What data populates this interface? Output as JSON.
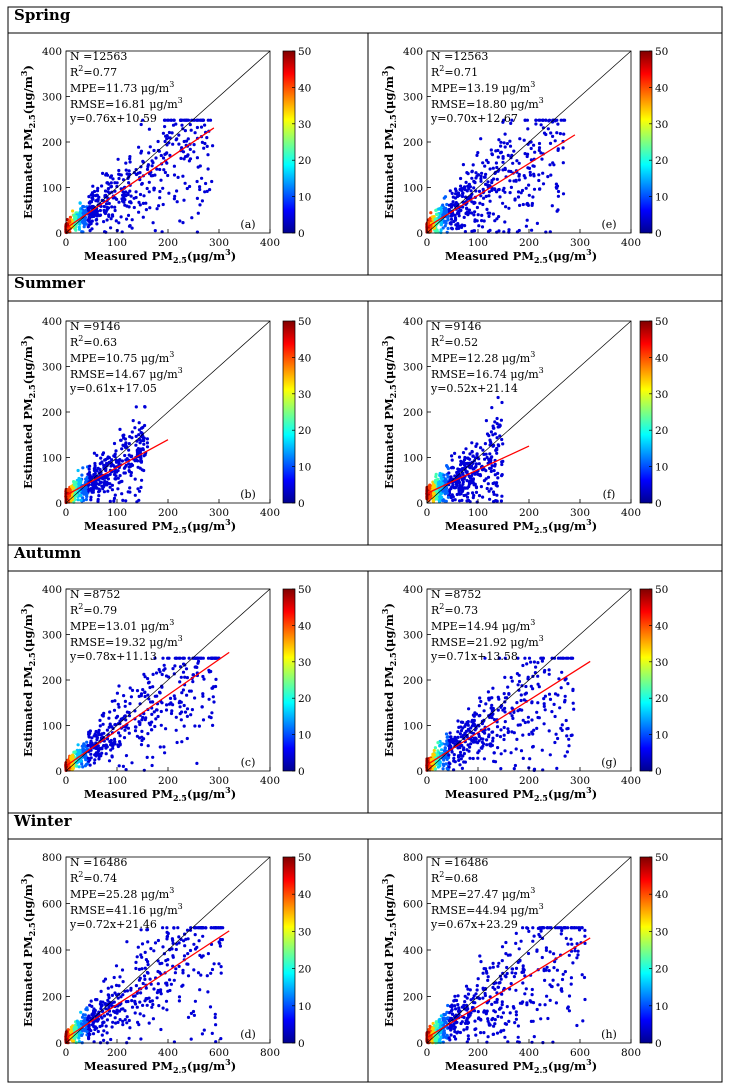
{
  "chart_data": {
    "type": "scatter",
    "colorbar": {
      "min": 0,
      "max": 50,
      "ticks": [
        0,
        10,
        20,
        30,
        40,
        50
      ]
    },
    "axis_labels": {
      "x_main": "Measured PM",
      "x_sub": "2.5",
      "x_unit": "(μg/m",
      "x_exp": "3",
      "x_close": ")",
      "y_main": "Estimated PM",
      "y_sub": "2.5",
      "y_unit": "(μg/m",
      "y_exp": "3",
      "y_close": ")"
    },
    "seasons": [
      {
        "name": "Spring",
        "axis_max": 400,
        "ticks": [
          0,
          100,
          200,
          300,
          400
        ],
        "panels": [
          {
            "label": "(a)",
            "N": "N =12563",
            "R2": "=0.77",
            "MPE": "MPE=11.73 μg/m",
            "RMSE": "RMSE=16.81 μg/m",
            "eq": "y=0.76x+10.59",
            "slope": 0.76,
            "intercept": 10.59,
            "xfit_max": 290,
            "spread": 0.3,
            "xmax_data": 290
          },
          {
            "label": "(e)",
            "N": "N =12563",
            "R2": "=0.71",
            "MPE": "MPE=13.19 μg/m",
            "RMSE": "RMSE=18.80 μg/m",
            "eq": "y=0.70x+12.67",
            "slope": 0.7,
            "intercept": 12.67,
            "xfit_max": 290,
            "spread": 0.36,
            "xmax_data": 270
          }
        ]
      },
      {
        "name": "Summer",
        "axis_max": 400,
        "ticks": [
          0,
          100,
          200,
          300,
          400
        ],
        "panels": [
          {
            "label": "(b)",
            "N": "N =9146",
            "R2": "=0.63",
            "MPE": "MPE=10.75 μg/m",
            "RMSE": "RMSE=14.67 μg/m",
            "eq": "y=0.61x+17.05",
            "slope": 0.61,
            "intercept": 17.05,
            "xfit_max": 200,
            "spread": 0.3,
            "xmax_data": 160
          },
          {
            "label": "(f)",
            "N": "N =9146",
            "R2": "=0.52",
            "MPE": "MPE=12.28 μg/m",
            "RMSE": "RMSE=16.74 μg/m",
            "eq": "y=0.52x+21.14",
            "slope": 0.52,
            "intercept": 21.14,
            "xfit_max": 200,
            "spread": 0.34,
            "xmax_data": 150
          }
        ]
      },
      {
        "name": "Autumn",
        "axis_max": 400,
        "ticks": [
          0,
          100,
          200,
          300,
          400
        ],
        "panels": [
          {
            "label": "(c)",
            "N": "N =8752",
            "R2": "=0.79",
            "MPE": "MPE=13.01 μg/m",
            "RMSE": "RMSE=19.32 μg/m",
            "eq": "y=0.78x+11.13",
            "slope": 0.78,
            "intercept": 11.13,
            "xfit_max": 320,
            "spread": 0.28,
            "xmax_data": 300
          },
          {
            "label": "(g)",
            "N": "N =8752",
            "R2": "=0.73",
            "MPE": "MPE=14.94 μg/m",
            "RMSE": "RMSE=21.92 μg/m",
            "eq": "y=0.71x+13.58",
            "slope": 0.71,
            "intercept": 13.58,
            "xfit_max": 320,
            "spread": 0.33,
            "xmax_data": 290
          }
        ]
      },
      {
        "name": "Winter",
        "axis_max": 800,
        "ticks": [
          0,
          200,
          400,
          600,
          800
        ],
        "panels": [
          {
            "label": "(d)",
            "N": "N =16486",
            "R2": "=0.74",
            "MPE": "MPE=25.28 μg/m",
            "RMSE": "RMSE=41.16 μg/m",
            "eq": "y=0.72x+21.46",
            "slope": 0.72,
            "intercept": 21.46,
            "xfit_max": 640,
            "spread": 0.3,
            "xmax_data": 620
          },
          {
            "label": "(h)",
            "N": "N =16486",
            "R2": "=0.68",
            "MPE": "MPE=27.47 μg/m",
            "RMSE": "RMSE=44.94 μg/m",
            "eq": "y=0.67x+23.29",
            "slope": 0.67,
            "intercept": 23.29,
            "xfit_max": 640,
            "spread": 0.33,
            "xmax_data": 620
          }
        ]
      }
    ]
  }
}
